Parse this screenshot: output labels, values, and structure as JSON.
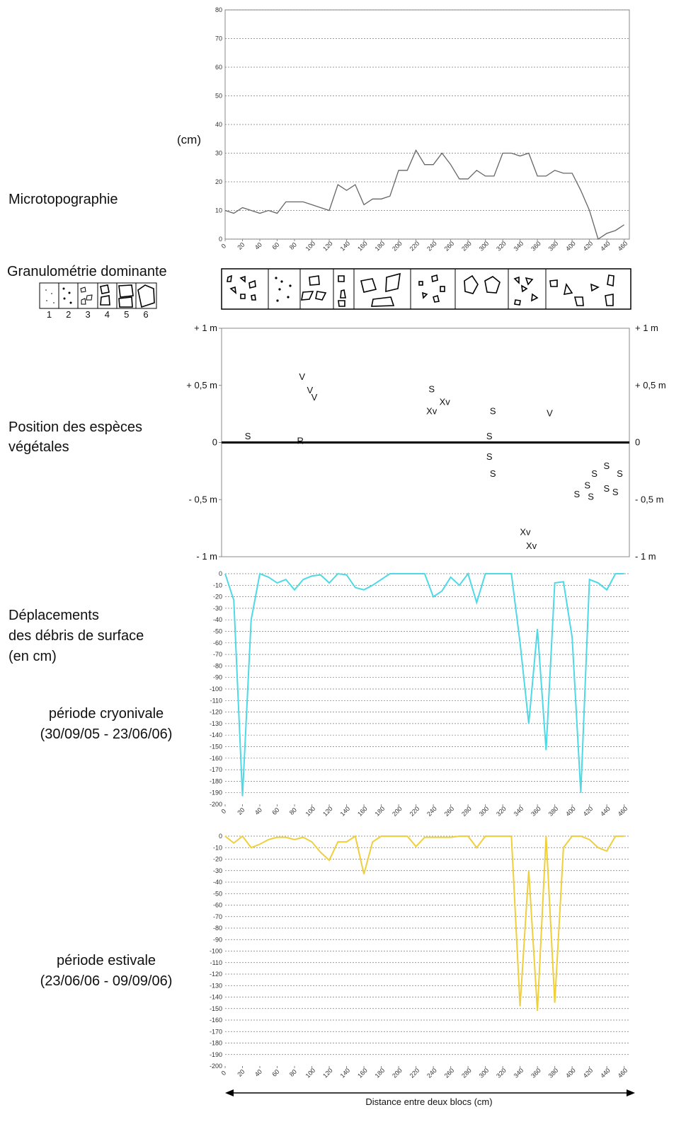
{
  "labels": {
    "microtopo": "Microtopographie",
    "species": [
      "Position des espèces",
      "végétales"
    ],
    "displacement": [
      "Déplacements",
      "des débris de surface",
      "(en cm)"
    ],
    "cryo": [
      "période cryonivale",
      "(30/09/05 - 23/06/06)"
    ],
    "estival": [
      "période estivale",
      "(23/06/06 - 09/09/06)"
    ],
    "axis_title": "Distance entre deux blocs (cm)"
  },
  "granulometry": {
    "title": "Granulométrie dominante",
    "legend": [
      "1",
      "2",
      "3",
      "4",
      "5",
      "6"
    ]
  },
  "chart_data": [
    {
      "type": "line",
      "y_label": "(cm)",
      "x": [
        0,
        10,
        20,
        30,
        40,
        50,
        60,
        70,
        80,
        90,
        100,
        110,
        120,
        130,
        140,
        150,
        160,
        170,
        180,
        190,
        200,
        210,
        220,
        230,
        240,
        250,
        260,
        270,
        280,
        290,
        300,
        310,
        320,
        330,
        340,
        350,
        360,
        370,
        380,
        390,
        400,
        410,
        420,
        430,
        440,
        450,
        460
      ],
      "values": [
        10,
        9,
        11,
        10,
        9,
        10,
        9,
        13,
        13,
        13,
        12,
        11,
        10,
        19,
        17,
        19,
        12,
        14,
        14,
        15,
        24,
        24,
        31,
        26,
        26,
        30,
        26,
        21,
        21,
        24,
        22,
        22,
        30,
        30,
        29,
        30,
        22,
        22,
        24,
        23,
        23,
        17,
        10,
        0,
        2,
        3,
        5
      ],
      "color": "#666666",
      "xlim": [
        0,
        466
      ],
      "ylim": [
        0,
        80
      ],
      "yticks": [
        0,
        10,
        20,
        30,
        40,
        50,
        60,
        70,
        80
      ],
      "xticks": [
        0,
        20,
        40,
        60,
        80,
        100,
        120,
        140,
        160,
        180,
        200,
        220,
        240,
        260,
        280,
        300,
        320,
        340,
        360,
        380,
        400,
        420,
        440,
        460
      ],
      "grid": true
    },
    {
      "type": "scatter",
      "x": [
        30,
        90,
        92,
        101,
        106,
        240,
        255,
        240,
        310,
        306,
        306,
        310,
        375,
        440,
        426,
        455,
        418,
        440,
        450,
        406,
        422,
        347,
        354
      ],
      "values": [
        0.06,
        0.02,
        0.58,
        0.46,
        0.4,
        0.47,
        0.36,
        0.28,
        0.28,
        0.06,
        -0.12,
        -0.27,
        0.26,
        -0.2,
        -0.27,
        -0.27,
        -0.37,
        -0.4,
        -0.43,
        -0.45,
        -0.47,
        -0.78,
        -0.9
      ],
      "point_labels": [
        "S",
        "R",
        "V",
        "V",
        "V",
        "S",
        "Xv",
        "Xv",
        "S",
        "S",
        "S",
        "S",
        "V",
        "S",
        "S",
        "S",
        "S",
        "S",
        "S",
        "S",
        "S",
        "Xv",
        "Xv"
      ],
      "xlim": [
        0,
        466
      ],
      "ylim": [
        -1,
        1
      ],
      "yticks": [
        {
          "value": 1,
          "label": "+ 1 m"
        },
        {
          "value": 0.5,
          "label": "+ 0,5 m"
        },
        0,
        {
          "value": -0.5,
          "label": "- 0,5 m"
        },
        {
          "value": -1,
          "label": "- 1 m"
        }
      ]
    },
    {
      "type": "line",
      "x": [
        0,
        10,
        20,
        30,
        40,
        50,
        60,
        70,
        80,
        90,
        100,
        110,
        120,
        130,
        140,
        150,
        160,
        170,
        180,
        190,
        200,
        210,
        220,
        230,
        240,
        250,
        260,
        270,
        280,
        290,
        300,
        310,
        320,
        330,
        340,
        350,
        360,
        370,
        380,
        390,
        400,
        410,
        420,
        430,
        440,
        450,
        460
      ],
      "values": [
        0,
        -23,
        -193,
        -40,
        0,
        -3,
        -8,
        -5,
        -14,
        -5,
        -2,
        -1,
        -8,
        0,
        -1,
        -12,
        -14,
        -10,
        -5,
        0,
        0,
        0,
        0,
        0,
        -20,
        -15,
        -3,
        -10,
        0,
        -25,
        0,
        0,
        0,
        0,
        -60,
        -130,
        -48,
        -153,
        -8,
        -7,
        -55,
        -190,
        -5,
        -8,
        -14,
        0,
        0
      ],
      "color": "#4dd9e6",
      "xlim": [
        0,
        466
      ],
      "ylim": [
        -200,
        0
      ],
      "yticks": [
        0,
        -10,
        -20,
        -30,
        -40,
        -50,
        -60,
        -70,
        -80,
        -90,
        -100,
        -110,
        -120,
        -130,
        -140,
        -150,
        -160,
        -170,
        -180,
        -190,
        -200
      ],
      "xticks": [
        0,
        20,
        40,
        60,
        80,
        100,
        120,
        140,
        160,
        180,
        200,
        220,
        240,
        260,
        280,
        300,
        320,
        340,
        360,
        380,
        400,
        420,
        440,
        460
      ],
      "grid": true
    },
    {
      "type": "line",
      "x": [
        0,
        10,
        20,
        30,
        40,
        50,
        60,
        70,
        80,
        90,
        100,
        110,
        120,
        130,
        140,
        150,
        160,
        170,
        180,
        190,
        200,
        210,
        220,
        230,
        240,
        250,
        260,
        270,
        280,
        290,
        300,
        310,
        320,
        330,
        340,
        350,
        360,
        370,
        380,
        390,
        400,
        410,
        420,
        430,
        440,
        450,
        460
      ],
      "values": [
        0,
        -6,
        0,
        -10,
        -7,
        -3,
        -1,
        -1,
        -3,
        -1,
        -5,
        -14,
        -21,
        -5,
        -5,
        0,
        -33,
        -5,
        0,
        0,
        0,
        0,
        -9,
        -1,
        -1,
        -1,
        -1,
        0,
        0,
        -10,
        0,
        0,
        0,
        0,
        -148,
        -30,
        -152,
        0,
        -145,
        -10,
        0,
        0,
        -3,
        -10,
        -13,
        0,
        0
      ],
      "color": "#f0cf3c",
      "xlim": [
        0,
        466
      ],
      "ylim": [
        -200,
        0
      ],
      "yticks": [
        0,
        -10,
        -20,
        -30,
        -40,
        -50,
        -60,
        -70,
        -80,
        -90,
        -100,
        -110,
        -120,
        -130,
        -140,
        -150,
        -160,
        -170,
        -180,
        -190,
        -200
      ],
      "xticks": [
        0,
        20,
        40,
        60,
        80,
        100,
        120,
        140,
        160,
        180,
        200,
        220,
        240,
        260,
        280,
        300,
        320,
        340,
        360,
        380,
        400,
        420,
        440,
        460
      ],
      "grid": true
    }
  ]
}
